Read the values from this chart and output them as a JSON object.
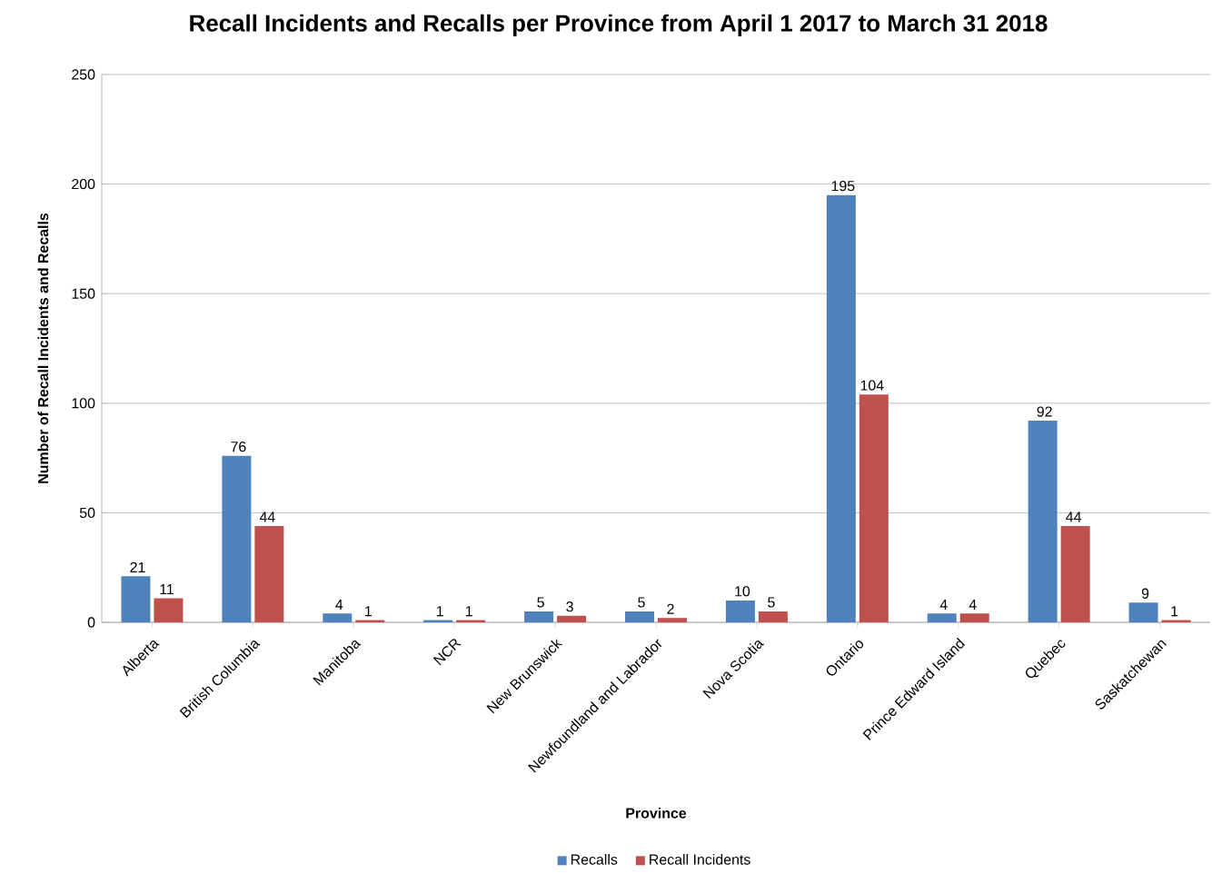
{
  "chart_data": {
    "type": "bar",
    "title": "Recall Incidents and Recalls per Province from April 1 2017 to March 31 2018",
    "xlabel": "Province",
    "ylabel": "Number of Recall Incidents and Recalls",
    "categories": [
      "Alberta",
      "British Columbia",
      "Manitoba",
      "NCR",
      "New Brunswick",
      "Newfoundland and Labrador",
      "Nova Scotia",
      "Ontario",
      "Prince Edward Island",
      "Quebec",
      "Saskatchewan"
    ],
    "series": [
      {
        "name": "Recalls",
        "color": "#4f81bd",
        "values": [
          21,
          76,
          4,
          1,
          5,
          5,
          10,
          195,
          4,
          92,
          9
        ]
      },
      {
        "name": "Recall Incidents",
        "color": "#c0504d",
        "values": [
          11,
          44,
          1,
          1,
          3,
          2,
          5,
          104,
          4,
          44,
          1
        ]
      }
    ],
    "ylim": [
      0,
      250
    ],
    "yticks": [
      0,
      50,
      100,
      150,
      200,
      250
    ],
    "grid": "y",
    "legend": "bottom",
    "data_labels": true
  }
}
